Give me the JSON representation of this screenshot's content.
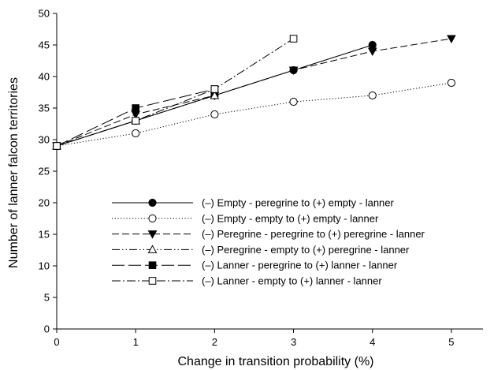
{
  "chart_data": {
    "type": "line",
    "title": "",
    "xlabel": "Change in transition probability (%)",
    "ylabel": "Number of lanner falcon territories",
    "xlim": [
      0,
      5.4
    ],
    "ylim": [
      0,
      50
    ],
    "xticks": [
      0,
      1,
      2,
      3,
      4,
      5
    ],
    "yticks": [
      0,
      5,
      10,
      15,
      20,
      25,
      30,
      35,
      40,
      45,
      50
    ],
    "grid": false,
    "legend_position": "bottom-center",
    "series": [
      {
        "name": "(–) Empty - peregrine to (+) empty - lanner",
        "x": [
          0,
          1,
          2,
          3,
          4
        ],
        "y": [
          29,
          33,
          37,
          41,
          45
        ],
        "marker": "filled-circle",
        "dash": "solid"
      },
      {
        "name": "(–) Empty - empty to (+) empty - lanner",
        "x": [
          0,
          1,
          2,
          3,
          4,
          5
        ],
        "y": [
          29,
          31,
          34,
          36,
          37,
          39
        ],
        "marker": "open-circle",
        "dash": "dotted"
      },
      {
        "name": "(–) Peregrine - peregrine to (+) peregrine - lanner",
        "x": [
          0,
          1,
          2,
          3,
          4,
          5
        ],
        "y": [
          29,
          34,
          37,
          41,
          44,
          46
        ],
        "marker": "filled-triangle-down",
        "dash": "dashed"
      },
      {
        "name": "(–) Peregrine - empty to (+) peregrine - lanner",
        "x": [
          0,
          1,
          2
        ],
        "y": [
          29,
          33,
          37
        ],
        "marker": "open-triangle-up",
        "dash": "dash-dot-dot"
      },
      {
        "name": "(–) Lanner - peregrine to (+) lanner - lanner",
        "x": [
          0,
          1,
          2
        ],
        "y": [
          29,
          35,
          38
        ],
        "marker": "filled-square",
        "dash": "long-dash"
      },
      {
        "name": "(–) Lanner - empty to (+) lanner - lanner",
        "x": [
          0,
          1,
          2,
          3
        ],
        "y": [
          29,
          33,
          38,
          46
        ],
        "marker": "open-square",
        "dash": "dash-dot"
      }
    ]
  }
}
